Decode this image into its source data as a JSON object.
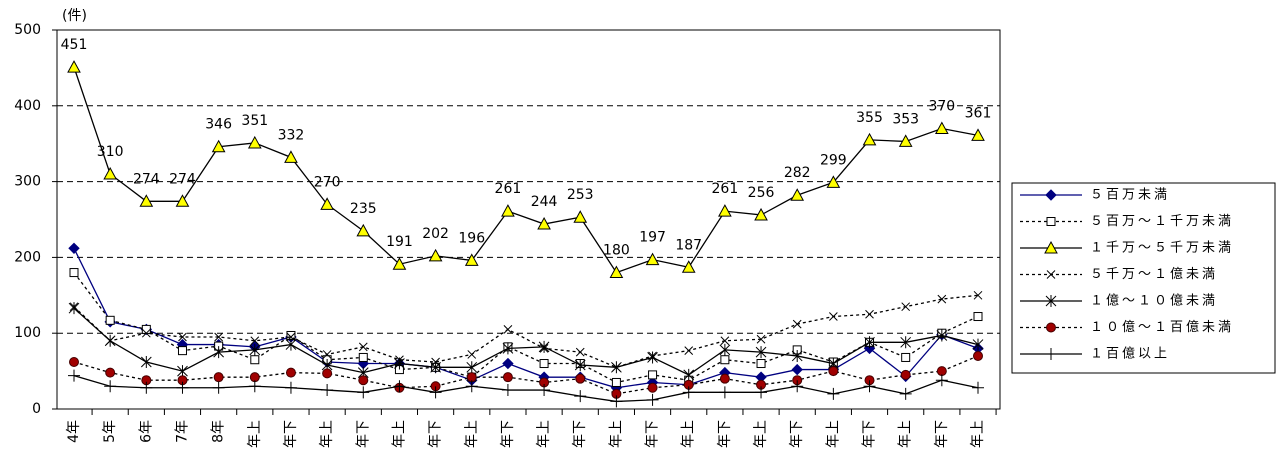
{
  "chart_data": {
    "type": "line",
    "y_unit": "(件)",
    "categories": [
      "4年",
      "5年",
      "6年",
      "7年",
      "8年",
      "年上",
      "年下",
      "年上",
      "年下",
      "年上",
      "年下",
      "年上",
      "年下",
      "年上",
      "年下",
      "年上",
      "年下",
      "年上",
      "年下",
      "年上",
      "年下",
      "年上",
      "年下",
      "年上",
      "年下",
      "年上"
    ],
    "ylim": [
      0,
      500
    ],
    "yticks": [
      0,
      100,
      200,
      300,
      400,
      500
    ],
    "grid": true,
    "legend": "right",
    "series": [
      {
        "name": "５百万未満",
        "color": "#000080",
        "marker": "diamond",
        "dashed": false,
        "values": [
          212,
          115,
          105,
          85,
          85,
          82,
          95,
          62,
          60,
          60,
          55,
          38,
          60,
          42,
          42,
          28,
          35,
          32,
          48,
          42,
          52,
          52,
          80,
          43,
          98,
          80
        ]
      },
      {
        "name": "５百万～１千万未満",
        "color": "#000000",
        "marker": "square",
        "dashed": true,
        "values": [
          180,
          117,
          105,
          77,
          83,
          65,
          97,
          65,
          68,
          52,
          55,
          42,
          82,
          60,
          60,
          35,
          45,
          38,
          65,
          60,
          78,
          62,
          88,
          68,
          100,
          122
        ]
      },
      {
        "name": "１千万～５千万未満",
        "color": "#ffff00",
        "marker": "triangle",
        "dashed": false,
        "labels": true,
        "values": [
          451,
          310,
          274,
          274,
          346,
          351,
          332,
          270,
          235,
          191,
          202,
          196,
          261,
          244,
          253,
          180,
          197,
          187,
          261,
          256,
          282,
          299,
          355,
          353,
          370,
          361
        ]
      },
      {
        "name": "５千万～１億未満",
        "color": "#000000",
        "marker": "x",
        "dashed": true,
        "values": [
          135,
          90,
          100,
          95,
          95,
          90,
          95,
          72,
          82,
          65,
          62,
          72,
          105,
          80,
          75,
          55,
          70,
          77,
          90,
          92,
          112,
          122,
          125,
          135,
          145,
          150
        ]
      },
      {
        "name": "１億～１０億未満",
        "color": "#000000",
        "marker": "star",
        "dashed": false,
        "values": [
          133,
          90,
          62,
          50,
          75,
          78,
          85,
          58,
          48,
          60,
          55,
          55,
          80,
          82,
          58,
          55,
          68,
          45,
          78,
          75,
          70,
          60,
          88,
          88,
          97,
          85
        ]
      },
      {
        "name": "１０億～１百億未満",
        "color": "#a00000",
        "marker": "circle",
        "dashed": true,
        "values": [
          62,
          48,
          38,
          38,
          42,
          42,
          48,
          47,
          38,
          28,
          30,
          42,
          42,
          35,
          40,
          20,
          28,
          32,
          40,
          32,
          38,
          50,
          38,
          45,
          50,
          70
        ]
      },
      {
        "name": "１百億以上",
        "color": "#000000",
        "marker": "plus",
        "dashed": false,
        "values": [
          44,
          30,
          28,
          28,
          28,
          30,
          28,
          25,
          22,
          30,
          22,
          30,
          25,
          25,
          17,
          10,
          12,
          22,
          22,
          22,
          30,
          20,
          30,
          20,
          38,
          28
        ]
      }
    ]
  }
}
